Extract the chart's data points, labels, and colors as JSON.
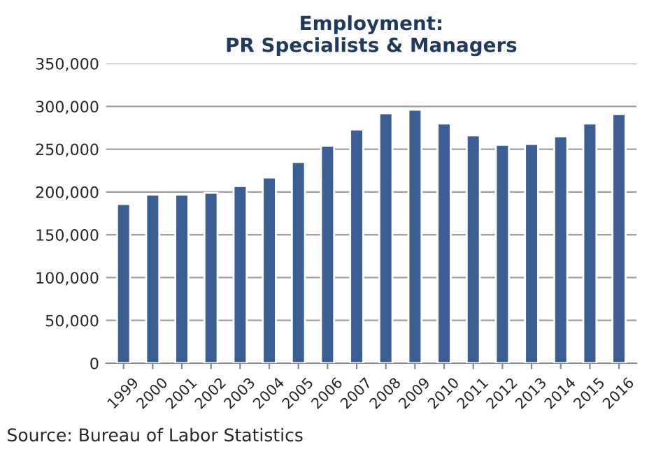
{
  "chart_data": {
    "type": "bar",
    "title": "Employment:\nPR Specialists & Managers",
    "categories": [
      "1999",
      "2000",
      "2001",
      "2002",
      "2003",
      "2004",
      "2005",
      "2006",
      "2007",
      "2008",
      "2009",
      "2010",
      "2011",
      "2012",
      "2013",
      "2014",
      "2015",
      "2016"
    ],
    "values": [
      186000,
      197000,
      197000,
      199000,
      207000,
      217000,
      235000,
      254000,
      273000,
      292000,
      296000,
      280000,
      266000,
      255000,
      256000,
      265000,
      280000,
      291000
    ],
    "color": "#3b5f94",
    "ylim": [
      0,
      350000
    ],
    "yticks": [
      {
        "value": 0,
        "label": "0"
      },
      {
        "value": 50000,
        "label": "50,000"
      },
      {
        "value": 100000,
        "label": "100,000"
      },
      {
        "value": 150000,
        "label": "150,000"
      },
      {
        "value": 200000,
        "label": "200,000"
      },
      {
        "value": 250000,
        "label": "250,000"
      },
      {
        "value": 300000,
        "label": "300,000"
      },
      {
        "value": 350000,
        "label": "350,000"
      }
    ],
    "grid": "y",
    "annotations": [
      "Source: Bureau of Labor Statistics"
    ]
  }
}
